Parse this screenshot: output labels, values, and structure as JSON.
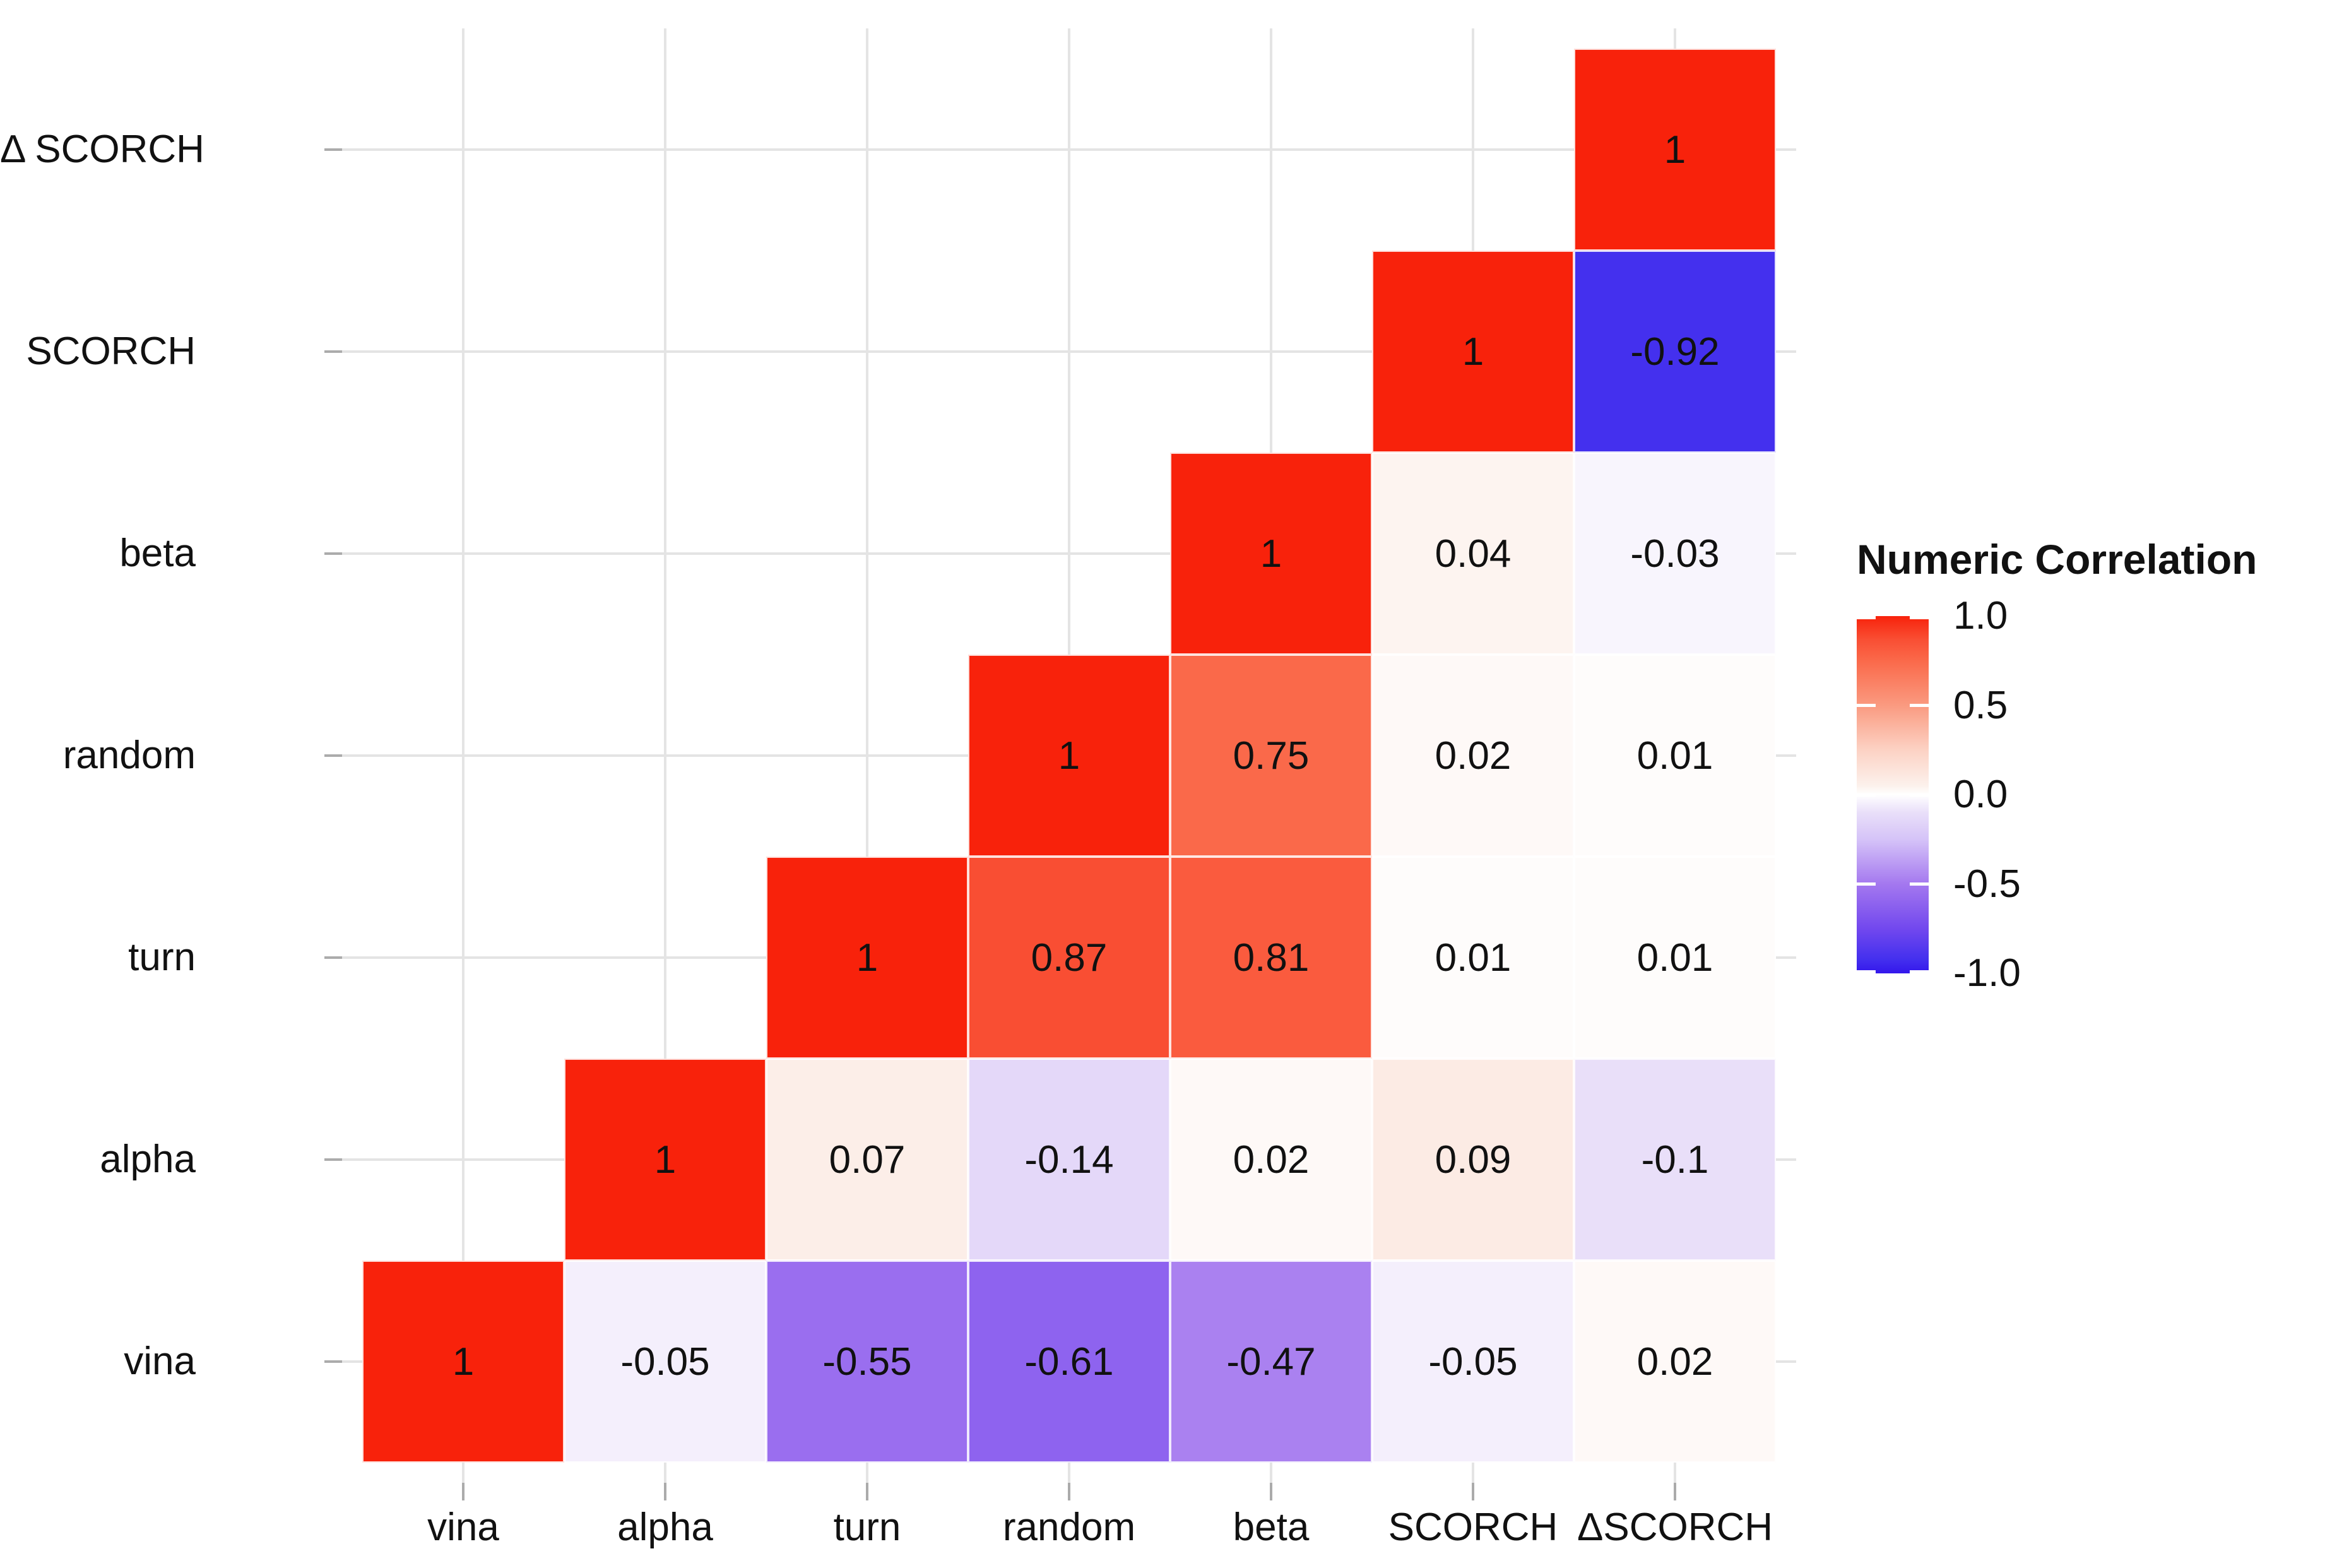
{
  "chart_data": {
    "type": "heatmap",
    "title": "",
    "x_categories": [
      "vina",
      "alpha",
      "turn",
      "random",
      "beta",
      "SCORCH",
      "ΔSCORCH"
    ],
    "y_categories_top_to_bottom": [
      "Δ SCORCH",
      "SCORCH",
      "beta",
      "random",
      "turn",
      "alpha",
      "vina"
    ],
    "rows": [
      {
        "label": "Δ SCORCH",
        "values": [
          null,
          null,
          null,
          null,
          null,
          null,
          1
        ]
      },
      {
        "label": "SCORCH",
        "values": [
          null,
          null,
          null,
          null,
          null,
          1,
          -0.92
        ]
      },
      {
        "label": "beta",
        "values": [
          null,
          null,
          null,
          null,
          1,
          0.04,
          -0.03
        ]
      },
      {
        "label": "random",
        "values": [
          null,
          null,
          null,
          1,
          0.75,
          0.02,
          0.01
        ]
      },
      {
        "label": "turn",
        "values": [
          null,
          null,
          1,
          0.87,
          0.81,
          0.01,
          0.01
        ]
      },
      {
        "label": "alpha",
        "values": [
          null,
          1,
          0.07,
          -0.14,
          0.02,
          0.09,
          -0.1
        ]
      },
      {
        "label": "vina",
        "values": [
          1,
          -0.05,
          -0.55,
          -0.61,
          -0.47,
          -0.05,
          0.02
        ]
      }
    ],
    "value_range": [
      -1,
      1
    ],
    "grid": true,
    "shape": "lower-triangle-staircase",
    "legend": {
      "title": "Numeric Correlation",
      "position": "right",
      "ticks": [
        {
          "value": 1.0,
          "label": "1.0"
        },
        {
          "value": 0.5,
          "label": "0.5"
        },
        {
          "value": 0.0,
          "label": "0.0"
        },
        {
          "value": -0.5,
          "label": "-0.5"
        },
        {
          "value": -1.0,
          "label": "-1.0"
        }
      ]
    },
    "colors": {
      "gradient_stops": [
        {
          "v": -1.0,
          "c": "#3316EC"
        },
        {
          "v": -0.92,
          "c": "#4430EE"
        },
        {
          "v": -0.75,
          "c": "#7248EE"
        },
        {
          "v": -0.5,
          "c": "#A478EF"
        },
        {
          "v": -0.25,
          "c": "#D5C3F8"
        },
        {
          "v": -0.1,
          "c": "#E9DFF9"
        },
        {
          "v": 0.0,
          "c": "#FFFFFF"
        },
        {
          "v": 0.05,
          "c": "#FCF1EC"
        },
        {
          "v": 0.25,
          "c": "#FCD2C4"
        },
        {
          "v": 0.5,
          "c": "#FA9A80"
        },
        {
          "v": 0.75,
          "c": "#FA694A"
        },
        {
          "v": 0.87,
          "c": "#F94E33"
        },
        {
          "v": 1.0,
          "c": "#F8220B"
        }
      ],
      "grid_line": "#E4E4E4",
      "axis_tick": "#ABABAB",
      "text": "#111111",
      "background": "#FFFFFF",
      "cell_border": "rgba(255,255,255,0.85)"
    }
  }
}
